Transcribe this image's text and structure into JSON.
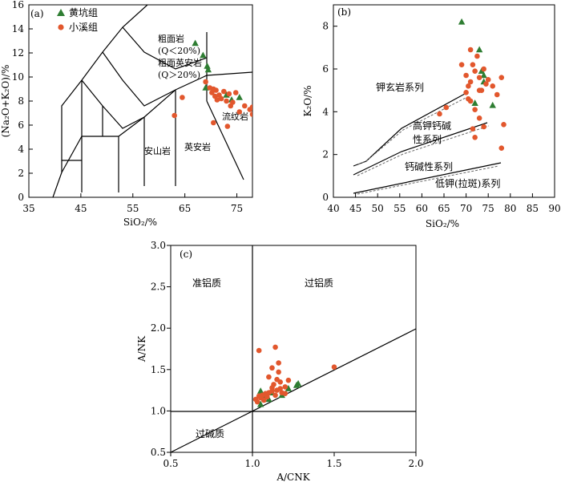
{
  "colors": {
    "green": "#2e7d32",
    "orange": "#e2572d",
    "axis": "#000000",
    "dash": "#666666"
  },
  "chart_data": [
    {
      "type": "scatter",
      "panel_label": "(a)",
      "xlabel": "SiO₂/%",
      "ylabel": "(Na₂O+K₂O)/%",
      "xlim": [
        35,
        78
      ],
      "ylim": [
        0,
        16
      ],
      "xticks": [
        35,
        45,
        55,
        65,
        75
      ],
      "yticks": [
        0,
        2,
        4,
        6,
        8,
        10,
        12,
        14,
        16
      ],
      "legend_position": "top-left",
      "legend": [
        "黄坑组",
        "小溪组"
      ],
      "field_labels": {
        "trachyte": "粗面岩",
        "trachyte_q": "(Q＜20%)",
        "trachydacite": "粗面英安岩",
        "trachydacite_q": "(Q＞20%)",
        "andesite": "安山岩",
        "dacite": "英安岩",
        "rhyolite": "流纹岩"
      },
      "series": [
        {
          "name": "黄坑组",
          "marker": "triangle",
          "color": "green",
          "points": [
            [
              67,
              12.8
            ],
            [
              69.3,
              10.9
            ],
            [
              69.5,
              10.6
            ],
            [
              68.5,
              11.8
            ],
            [
              69,
              9.1
            ],
            [
              73,
              8.5
            ],
            [
              74,
              8.1
            ],
            [
              75.5,
              8.3
            ]
          ]
        },
        {
          "name": "小溪组",
          "marker": "circle",
          "color": "orange",
          "points": [
            [
              63,
              6.8
            ],
            [
              64.5,
              8.3
            ],
            [
              69,
              9.6
            ],
            [
              69.8,
              9.1
            ],
            [
              70.2,
              8.7
            ],
            [
              70.5,
              9.0
            ],
            [
              70.8,
              8.4
            ],
            [
              71,
              8.9
            ],
            [
              71.2,
              8.1
            ],
            [
              71.6,
              8.5
            ],
            [
              72,
              8.2
            ],
            [
              72.5,
              8.8
            ],
            [
              73,
              8.0
            ],
            [
              73.5,
              8.6
            ],
            [
              73.8,
              7.6
            ],
            [
              74.2,
              7.9
            ],
            [
              74.8,
              8.7
            ],
            [
              75.5,
              7.1
            ],
            [
              76.5,
              7.6
            ],
            [
              77.5,
              7.3
            ],
            [
              78,
              7.5
            ],
            [
              78,
              6.9
            ],
            [
              70.5,
              6.2
            ],
            [
              73.2,
              5.9
            ]
          ]
        }
      ]
    },
    {
      "type": "scatter",
      "panel_label": "(b)",
      "xlabel": "SiO₂/%",
      "ylabel": "K₂O/%",
      "xlim": [
        40,
        90
      ],
      "ylim": [
        0,
        9
      ],
      "xticks": [
        40,
        45,
        50,
        55,
        60,
        65,
        70,
        75,
        80,
        85,
        90
      ],
      "yticks": [
        0,
        2,
        4,
        6,
        8
      ],
      "series_labels": [
        "钾玄岩系列",
        "高钾钙碱",
        "性系列",
        "钙碱性系列",
        "低钾(拉斑)系列"
      ],
      "series": [
        {
          "name": "黄坑组",
          "marker": "triangle",
          "color": "green",
          "points": [
            [
              69,
              8.2
            ],
            [
              73,
              6.9
            ],
            [
              74,
              5.7
            ],
            [
              76,
              4.3
            ],
            [
              72,
              4.4
            ],
            [
              73.5,
              5.9
            ],
            [
              74,
              5.4
            ]
          ]
        },
        {
          "name": "小溪组",
          "marker": "circle",
          "color": "orange",
          "points": [
            [
              69,
              6.2
            ],
            [
              70,
              5.7
            ],
            [
              70.5,
              5.2
            ],
            [
              71,
              6.9
            ],
            [
              71.5,
              6.2
            ],
            [
              72,
              5.9
            ],
            [
              72.5,
              6.6
            ],
            [
              73,
              5.6
            ],
            [
              73.5,
              5.0
            ],
            [
              74,
              6.0
            ],
            [
              75,
              5.5
            ],
            [
              76,
              5.2
            ],
            [
              77,
              4.8
            ],
            [
              78,
              5.6
            ],
            [
              78.5,
              3.4
            ],
            [
              78,
              2.3
            ],
            [
              70.5,
              4.6
            ],
            [
              71,
              4.5
            ],
            [
              72,
              4.1
            ],
            [
              73,
              3.7
            ],
            [
              71.5,
              3.2
            ],
            [
              74,
              3.3
            ],
            [
              72,
              2.8
            ],
            [
              64,
              3.9
            ],
            [
              65.5,
              4.2
            ],
            [
              70,
              4.9
            ],
            [
              71,
              5.4
            ],
            [
              73,
              5.0
            ],
            [
              74.5,
              5.3
            ]
          ]
        }
      ]
    },
    {
      "type": "scatter",
      "panel_label": "(c)",
      "xlabel": "A/CNK",
      "ylabel": "A/NK",
      "xlim": [
        0.5,
        2.0
      ],
      "ylim": [
        0.5,
        3.0
      ],
      "xticks": [
        "0.5",
        "1.0",
        "1.5",
        "2.0"
      ],
      "yticks": [
        "0.5",
        "1.0",
        "1.5",
        "2.0",
        "2.5",
        "3.0"
      ],
      "region_labels": {
        "metaluminous": "准铝质",
        "peraluminous": "过铝质",
        "peralkaline": "过碱质"
      },
      "series": [
        {
          "name": "黄坑组",
          "marker": "triangle",
          "color": "green",
          "points": [
            [
              1.05,
              1.24
            ],
            [
              1.08,
              1.18
            ],
            [
              1.12,
              1.22
            ],
            [
              1.18,
              1.19
            ],
            [
              1.22,
              1.27
            ],
            [
              1.27,
              1.31
            ],
            [
              1.28,
              1.33
            ],
            [
              1.05,
              1.08
            ],
            [
              1.1,
              1.14
            ]
          ]
        },
        {
          "name": "小溪组",
          "marker": "circle",
          "color": "orange",
          "points": [
            [
              1.04,
              1.73
            ],
            [
              1.14,
              1.77
            ],
            [
              1.16,
              1.58
            ],
            [
              1.12,
              1.52
            ],
            [
              1.16,
              1.47
            ],
            [
              1.1,
              1.41
            ],
            [
              1.15,
              1.38
            ],
            [
              1.22,
              1.37
            ],
            [
              1.13,
              1.32
            ],
            [
              1.2,
              1.29
            ],
            [
              1.17,
              1.27
            ],
            [
              1.15,
              1.25
            ],
            [
              1.12,
              1.24
            ],
            [
              1.1,
              1.22
            ],
            [
              1.08,
              1.21
            ],
            [
              1.06,
              1.19
            ],
            [
              1.04,
              1.18
            ],
            [
              1.05,
              1.16
            ],
            [
              1.02,
              1.14
            ],
            [
              1.09,
              1.17
            ],
            [
              1.14,
              1.19
            ],
            [
              1.18,
              1.22
            ],
            [
              1.2,
              1.21
            ],
            [
              1.5,
              1.53
            ],
            [
              1.03,
              1.11
            ],
            [
              1.07,
              1.13
            ],
            [
              1.17,
              1.35
            ],
            [
              1.12,
              1.28
            ]
          ]
        }
      ]
    }
  ]
}
